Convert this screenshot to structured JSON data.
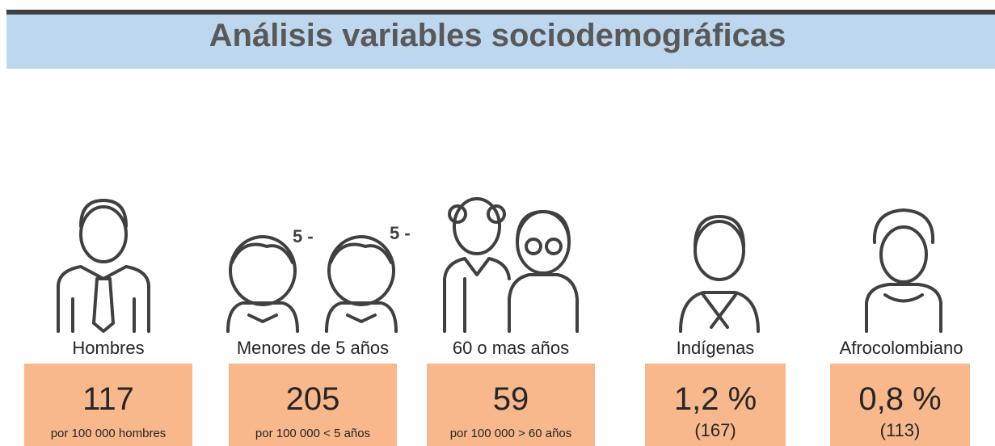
{
  "header": {
    "title": "Análisis variables sociodemográficas"
  },
  "icon_notes": [
    "5 -",
    "5 -"
  ],
  "items": [
    {
      "label": "Hombres",
      "value": "117",
      "note": "por 100 000 hombres"
    },
    {
      "label": "Menores de 5 años",
      "value": "205",
      "note": "por 100 000 < 5 años"
    },
    {
      "label": "60 o mas años",
      "value": "59",
      "note": "por 100 000  > 60 años"
    },
    {
      "label": "Indígenas",
      "value": "1,2 %",
      "note": "(167)"
    },
    {
      "label": "Afrocolombiano",
      "value": "0,8 %",
      "note": "(113)"
    }
  ]
}
